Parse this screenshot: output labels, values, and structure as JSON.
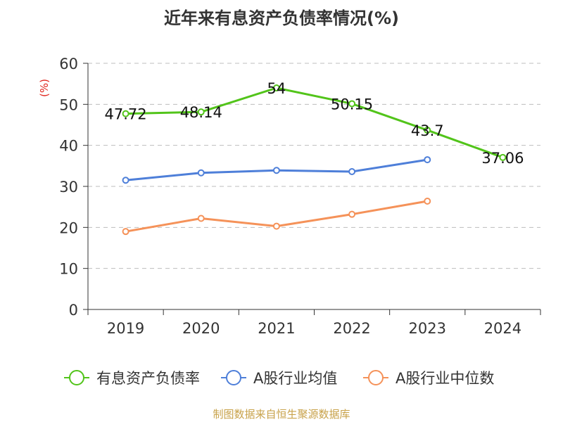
{
  "title": "近年来有息资产负债率情况(%)",
  "source": "制图数据来自恒生聚源数据库",
  "chart_data": {
    "type": "line",
    "categories": [
      "2019",
      "2020",
      "2021",
      "2022",
      "2023",
      "2024"
    ],
    "ylabel": "(%)",
    "ylim": [
      0,
      60
    ],
    "yticks": [
      0,
      10,
      20,
      30,
      40,
      50,
      60
    ],
    "grid": true,
    "legend_position": "bottom",
    "series": [
      {
        "name": "有息资产负债率",
        "color": "#52c41a",
        "show_labels": true,
        "values": [
          47.72,
          48.14,
          54,
          50.15,
          43.7,
          37.06
        ]
      },
      {
        "name": "A股行业均值",
        "color": "#4e7fd9",
        "show_labels": false,
        "values": [
          31.5,
          33.3,
          33.9,
          33.6,
          36.5,
          null
        ]
      },
      {
        "name": "A股行业中位数",
        "color": "#f59259",
        "show_labels": false,
        "values": [
          19.0,
          22.2,
          20.3,
          23.2,
          26.4,
          null
        ]
      }
    ]
  }
}
